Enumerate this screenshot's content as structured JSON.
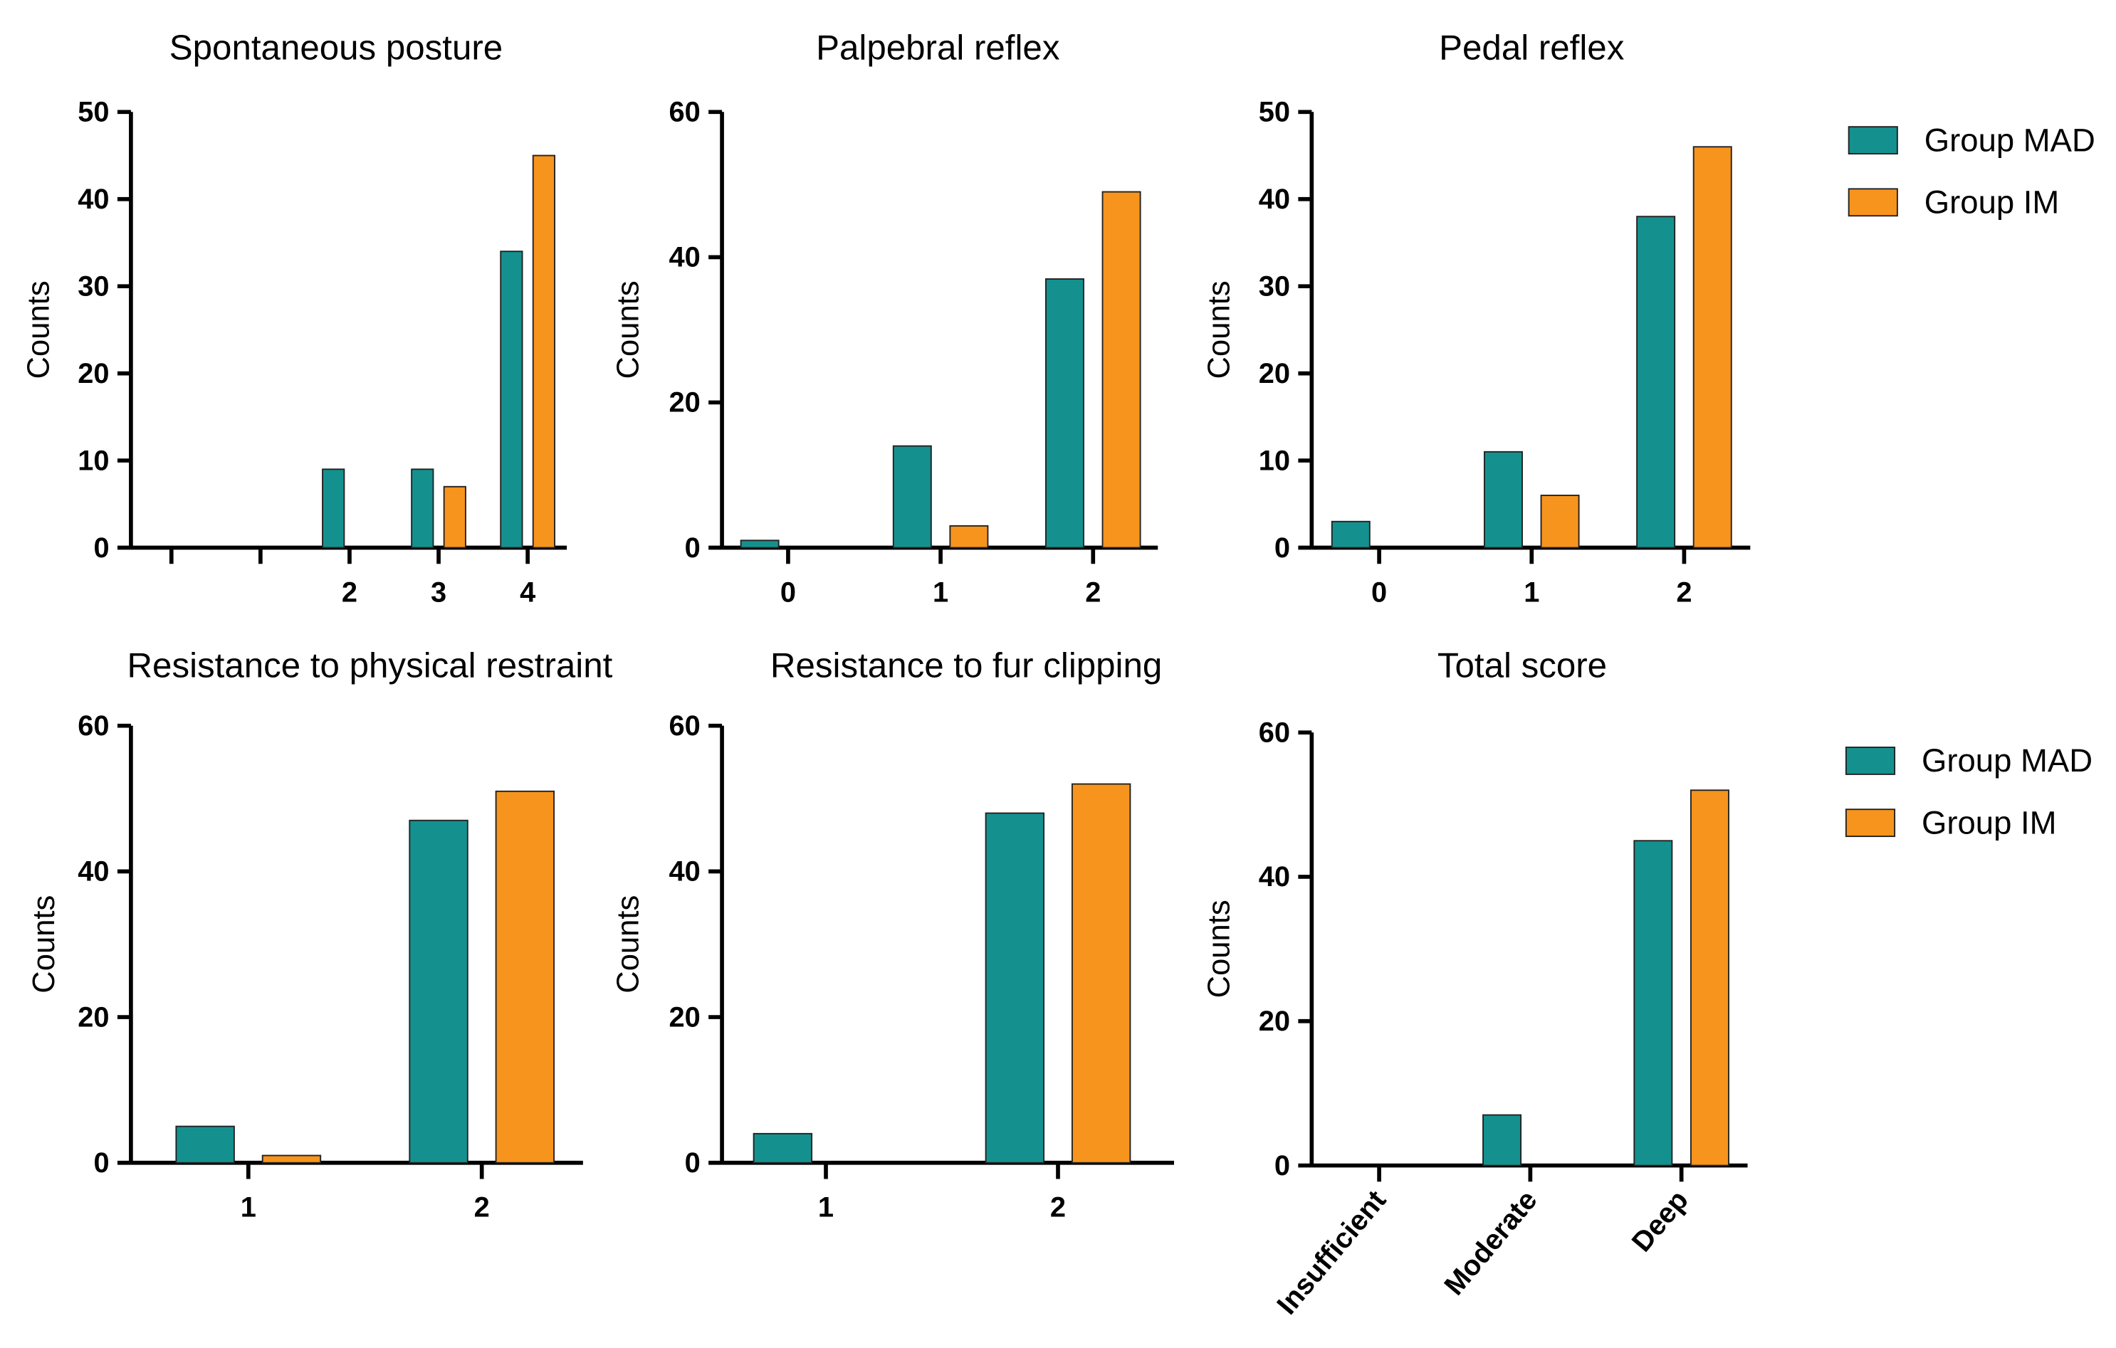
{
  "chart_data": [
    {
      "type": "bar",
      "title": "Spontaneous posture",
      "y_label": "Counts",
      "categories": [
        null,
        null,
        "2",
        "3",
        "4"
      ],
      "series": [
        {
          "name": "Group MAD",
          "color": "#14918f",
          "values": [
            0,
            0,
            9,
            9,
            34
          ]
        },
        {
          "name": "Group IM",
          "color": "#f7941d",
          "values": [
            0,
            0,
            0,
            7,
            45
          ]
        }
      ],
      "ylim": [
        0,
        50
      ],
      "yticks": [
        0,
        10,
        20,
        30,
        40,
        50
      ]
    },
    {
      "type": "bar",
      "title": "Palpebral reflex",
      "y_label": "Counts",
      "categories": [
        "0",
        "1",
        "2"
      ],
      "series": [
        {
          "name": "Group MAD",
          "color": "#14918f",
          "values": [
            1,
            14,
            37
          ]
        },
        {
          "name": "Group IM",
          "color": "#f7941d",
          "values": [
            0,
            3,
            49
          ]
        }
      ],
      "ylim": [
        0,
        60
      ],
      "yticks": [
        0,
        20,
        40,
        60
      ]
    },
    {
      "type": "bar",
      "title": "Pedal reflex",
      "y_label": "Counts",
      "categories": [
        "0",
        "1",
        "2"
      ],
      "series": [
        {
          "name": "Group MAD",
          "color": "#14918f",
          "values": [
            3,
            11,
            38
          ]
        },
        {
          "name": "Group IM",
          "color": "#f7941d",
          "values": [
            0,
            6,
            46
          ]
        }
      ],
      "ylim": [
        0,
        50
      ],
      "yticks": [
        0,
        10,
        20,
        30,
        40,
        50
      ]
    },
    {
      "type": "bar",
      "title": "Resistance to physical restraint",
      "y_label": "Counts",
      "categories": [
        "1",
        "2"
      ],
      "series": [
        {
          "name": "Group MAD",
          "color": "#14918f",
          "values": [
            5,
            47
          ]
        },
        {
          "name": "Group IM",
          "color": "#f7941d",
          "values": [
            1,
            51
          ]
        }
      ],
      "ylim": [
        0,
        60
      ],
      "yticks": [
        0,
        20,
        40,
        60
      ]
    },
    {
      "type": "bar",
      "title": "Resistance to fur clipping",
      "y_label": "Counts",
      "categories": [
        "1",
        "2"
      ],
      "series": [
        {
          "name": "Group MAD",
          "color": "#14918f",
          "values": [
            4,
            48
          ]
        },
        {
          "name": "Group IM",
          "color": "#f7941d",
          "values": [
            0,
            52
          ]
        }
      ],
      "ylim": [
        0,
        60
      ],
      "yticks": [
        0,
        20,
        40,
        60
      ]
    },
    {
      "type": "bar",
      "title": "Total score",
      "y_label": "Counts",
      "categories": [
        "Insufficient",
        "Moderate",
        "Deep"
      ],
      "series": [
        {
          "name": "Group MAD",
          "color": "#14918f",
          "values": [
            0,
            7,
            45
          ]
        },
        {
          "name": "Group IM",
          "color": "#f7941d",
          "values": [
            0,
            0,
            52
          ]
        }
      ],
      "ylim": [
        0,
        60
      ],
      "yticks": [
        0,
        20,
        40,
        60
      ]
    }
  ]
}
